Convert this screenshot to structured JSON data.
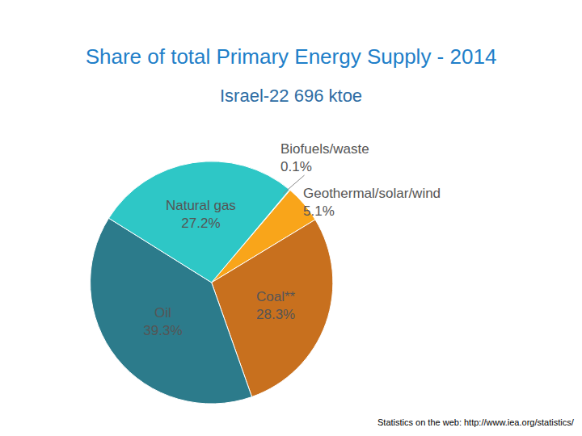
{
  "chart_data": {
    "type": "pie",
    "title": "Share of total Primary Energy Supply - 2014",
    "subtitle": "Israel-22 696 ktoe",
    "categories": [
      "Biofuels/waste",
      "Geothermal/solar/wind",
      "Coal**",
      "Oil",
      "Natural gas"
    ],
    "values": [
      0.1,
      5.1,
      28.3,
      39.3,
      27.2
    ],
    "value_labels": [
      "0.1%",
      "5.1%",
      "28.3%",
      "39.3%",
      "27.2%"
    ],
    "colors": [
      "#9e9e9e",
      "#f9a51a",
      "#c8701e",
      "#2c7b8b",
      "#2ec7c6"
    ],
    "data_labels": true,
    "annotations": [
      "Statistics on the web: http://www.iea.org/statistics/"
    ]
  }
}
